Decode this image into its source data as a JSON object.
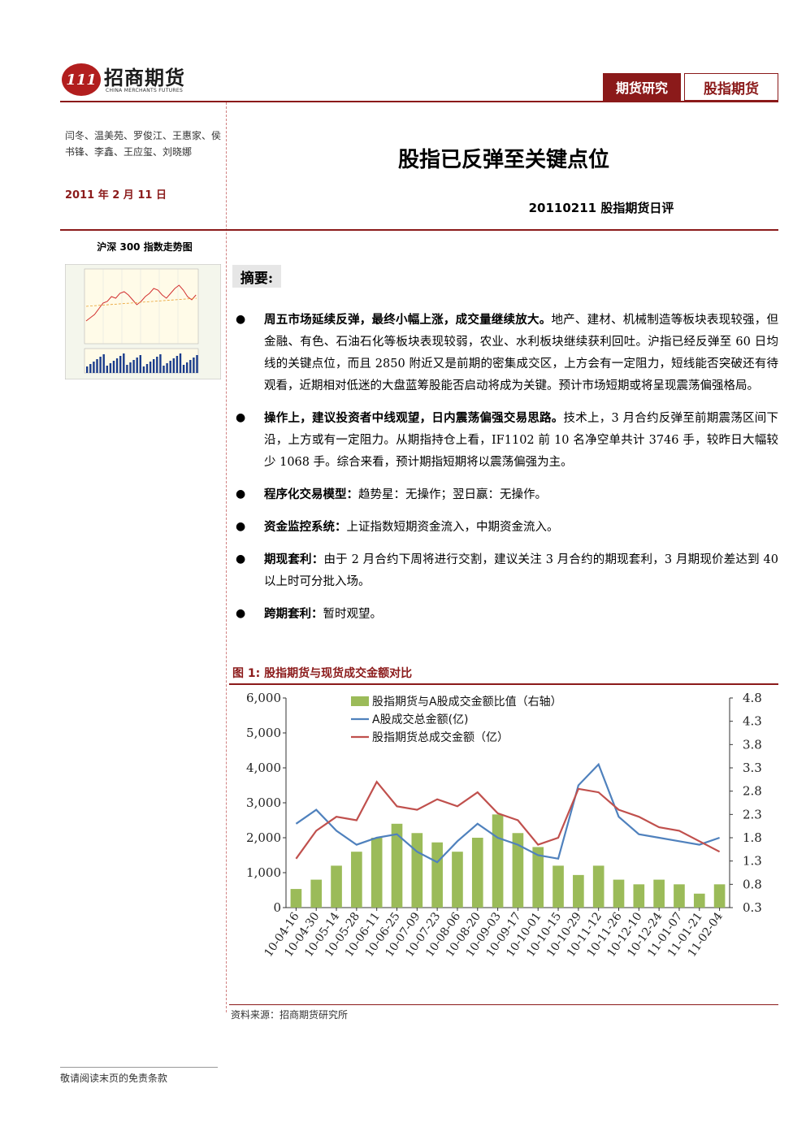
{
  "header": {
    "logo_mark": "111",
    "logo_name": "招商期货",
    "logo_sub": "CHINA MERCHANTS FUTURES",
    "tag_primary": "期货研究",
    "tag_secondary": "股指期货"
  },
  "sidebar": {
    "authors": "闫冬、温美苑、罗俊江、王惠家、侯书锋、李鑫、王应玺、刘晓娜",
    "date": "2011 年 2 月 11 日",
    "mini_chart_title": "沪深 300 指数走势图"
  },
  "report": {
    "title": "股指已反弹至关键点位",
    "subtitle": "20110211 股指期货日评",
    "summary_label": "摘要:"
  },
  "bullets": [
    {
      "bold": "周五市场延续反弹，最终小幅上涨，成交量继续放大。",
      "text": "地产、建材、机械制造等板块表现较强，但金融、有色、石油石化等板块表现较弱，农业、水利板块继续获利回吐。沪指已经反弹至 60 日均线的关键点位，而且 2850 附近又是前期的密集成交区，上方会有一定阻力，短线能否突破还有待观看，近期相对低迷的大盘蓝筹股能否启动将成为关键。预计市场短期或将呈现震荡偏强格局。"
    },
    {
      "bold": "操作上，建议投资者中线观望，日内震荡偏强交易思路。",
      "text": "技术上，3 月合约反弹至前期震荡区间下沿，上方或有一定阻力。从期指持仓上看，IF1102 前 10 名净空单共计 3746 手，较昨日大幅较少 1068 手。综合来看，预计期指短期将以震荡偏强为主。"
    },
    {
      "bold": "程序化交易模型：",
      "text": "趋势星：无操作；翌日赢：无操作。"
    },
    {
      "bold": "资金监控系统：",
      "text": "上证指数短期资金流入，中期资金流入。"
    },
    {
      "bold": "期现套利：",
      "text": "由于 2 月合约下周将进行交割，建议关注 3 月合约的期现套利，3 月期现价差达到 40 以上时可分批入场。"
    },
    {
      "bold": "跨期套利：",
      "text": "暂时观望。"
    }
  ],
  "figure": {
    "title": "图 1:  股指期货与现货成交金额对比",
    "source": "资料来源：招商期货研究所"
  },
  "chart_data": {
    "type": "bar",
    "legend_position": "top",
    "x_ticks": [
      "10-04-16",
      "10-04-30",
      "10-05-14",
      "10-05-28",
      "10-06-11",
      "10-06-25",
      "10-07-09",
      "10-07-23",
      "10-08-06",
      "10-08-20",
      "10-09-03",
      "10-09-17",
      "10-10-01",
      "10-10-15",
      "10-10-29",
      "10-11-12",
      "10-11-26",
      "10-12-10",
      "10-12-24",
      "11-01-07",
      "11-01-21",
      "11-02-04"
    ],
    "y_left_ticks": [
      "0",
      "1,000",
      "2,000",
      "3,000",
      "4,000",
      "5,000",
      "6,000"
    ],
    "y_left_lim": [
      0,
      6000
    ],
    "y_right_ticks": [
      "0.3",
      "0.8",
      "1.3",
      "1.8",
      "2.3",
      "2.8",
      "3.3",
      "3.8",
      "4.3",
      "4.8"
    ],
    "y_right_lim": [
      0.3,
      4.8
    ],
    "series": [
      {
        "name": "股指期货与A股成交金额比值（右轴）",
        "axis": "right",
        "color": "#9bbb59",
        "values": [
          0.7,
          0.9,
          1.2,
          1.5,
          1.8,
          2.1,
          1.9,
          1.7,
          1.5,
          1.8,
          2.3,
          1.9,
          1.6,
          1.2,
          1.0,
          1.2,
          0.9,
          0.8,
          0.9,
          0.8,
          0.6,
          0.8
        ]
      },
      {
        "name": "A股成交总金额(亿)",
        "axis": "left",
        "color": "#4f81bd",
        "values": [
          2400,
          2800,
          2200,
          1800,
          2000,
          2100,
          1600,
          1300,
          1900,
          2400,
          2000,
          1800,
          1500,
          1400,
          3500,
          4100,
          2600,
          2100,
          2000,
          1900,
          1800,
          2000
        ]
      },
      {
        "name": "股指期货总成交金额（亿）",
        "axis": "left",
        "color": "#c0504d",
        "values": [
          1400,
          2200,
          2600,
          2500,
          3600,
          2900,
          2800,
          3100,
          2900,
          3300,
          2700,
          2500,
          1800,
          2000,
          3400,
          3300,
          2800,
          2600,
          2300,
          2200,
          1900,
          1600
        ]
      }
    ]
  },
  "mini_chart": {
    "color_up": "#d23030",
    "color_ma": "#e8a030",
    "color_vol": "#1a3c8c"
  },
  "footer": {
    "notice": "敬请阅读末页的免责条款"
  }
}
